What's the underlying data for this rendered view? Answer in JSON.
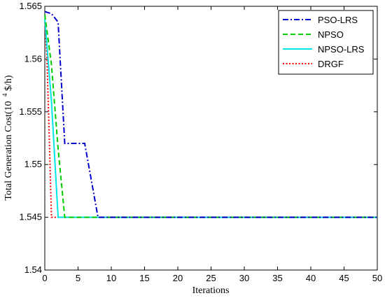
{
  "chart_data": {
    "type": "line",
    "xlabel": "Iterations",
    "ylabel_main": "Total Generation Cost(10",
    "ylabel_sup": "4",
    "ylabel_tail": " $/h)",
    "xlim": [
      0,
      50
    ],
    "ylim": [
      1.54,
      1.565
    ],
    "xticks": [
      0,
      5,
      10,
      15,
      20,
      25,
      30,
      35,
      40,
      45,
      50
    ],
    "yticks": [
      1.54,
      1.545,
      1.55,
      1.555,
      1.56,
      1.565
    ],
    "ytick_labels": [
      "1.54",
      "1.545",
      "1.55",
      "1.555",
      "1.56",
      "1.565"
    ],
    "grid": false,
    "legend_position": "top-right",
    "series": [
      {
        "name": "PSO-LRS",
        "color": "#0000cc",
        "dash": "dashdot",
        "x": [
          0,
          1,
          2,
          3,
          4,
          5,
          6,
          7,
          8,
          50
        ],
        "y": [
          1.5645,
          1.5643,
          1.5635,
          1.552,
          1.552,
          1.552,
          1.552,
          1.5485,
          1.545,
          1.545
        ]
      },
      {
        "name": "NPSO",
        "color": "#00cc00",
        "dash": "dashed",
        "x": [
          0,
          1,
          2,
          3,
          50
        ],
        "y": [
          1.5642,
          1.5595,
          1.5515,
          1.545,
          1.545
        ]
      },
      {
        "name": "NPSO-LRS",
        "color": "#00e5e5",
        "dash": "solid",
        "x": [
          0,
          1,
          2,
          50
        ],
        "y": [
          1.5638,
          1.556,
          1.545,
          1.545
        ]
      },
      {
        "name": "DRGF",
        "color": "#ff0000",
        "dash": "dotted",
        "x": [
          0,
          0.3,
          0.7,
          1.0,
          50
        ],
        "y": [
          1.5635,
          1.5605,
          1.552,
          1.545,
          1.545
        ]
      }
    ]
  }
}
